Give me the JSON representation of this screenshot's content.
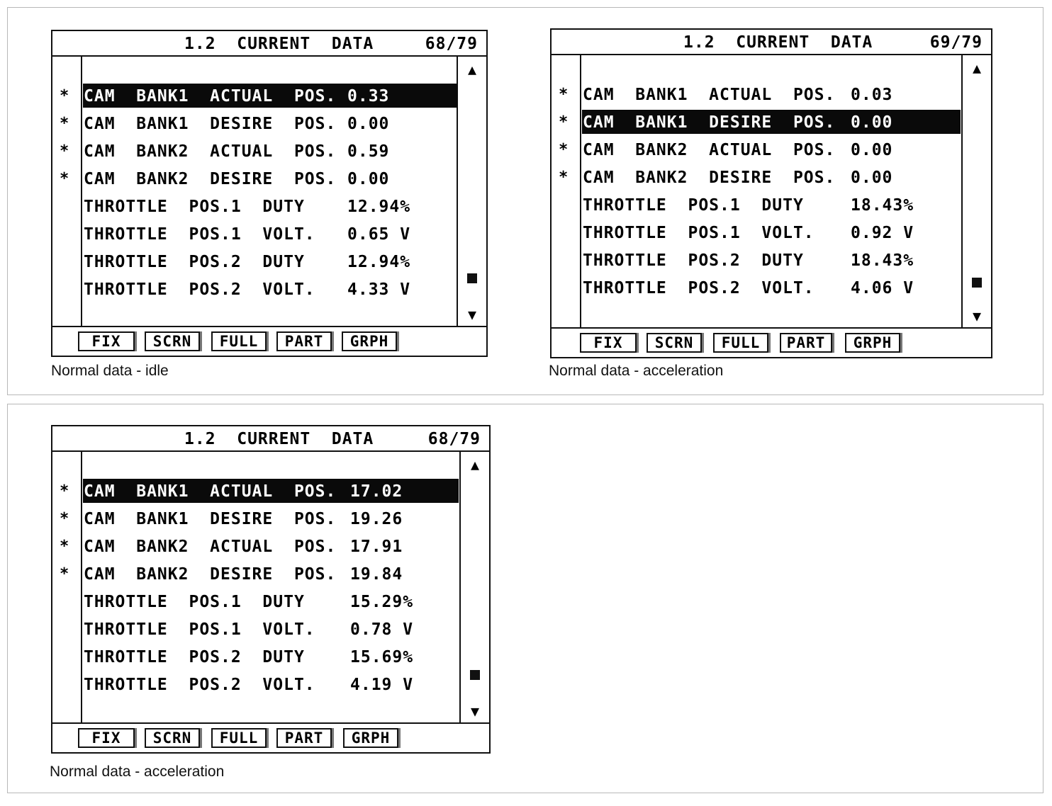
{
  "screens": [
    {
      "title": "1.2  CURRENT  DATA",
      "page": "68/79",
      "caption": "Normal data - idle",
      "rows": [
        {
          "mark": "*",
          "label": "CAM  BANK1  ACTUAL  POS.",
          "value": "0.33",
          "selected": true
        },
        {
          "mark": "*",
          "label": "CAM  BANK1  DESIRE  POS.",
          "value": "0.00",
          "selected": false
        },
        {
          "mark": "*",
          "label": "CAM  BANK2  ACTUAL  POS.",
          "value": "0.59",
          "selected": false
        },
        {
          "mark": "*",
          "label": "CAM  BANK2  DESIRE  POS.",
          "value": "0.00",
          "selected": false
        },
        {
          "mark": "",
          "label": "THROTTLE  POS.1  DUTY",
          "value": "12.94%",
          "selected": false
        },
        {
          "mark": "",
          "label": "THROTTLE  POS.1  VOLT.",
          "value": "0.65 V",
          "selected": false
        },
        {
          "mark": "",
          "label": "THROTTLE  POS.2  DUTY",
          "value": "12.94%",
          "selected": false
        },
        {
          "mark": "",
          "label": "THROTTLE  POS.2  VOLT.",
          "value": "4.33 V",
          "selected": false
        }
      ],
      "buttons": [
        "FIX",
        "SCRN",
        "FULL",
        "PART",
        "GRPH"
      ]
    },
    {
      "title": "1.2  CURRENT  DATA",
      "page": "69/79",
      "caption": "Normal data - acceleration",
      "rows": [
        {
          "mark": "*",
          "label": "CAM  BANK1  ACTUAL  POS.",
          "value": "0.03",
          "selected": false
        },
        {
          "mark": "*",
          "label": "CAM  BANK1  DESIRE  POS.",
          "value": "0.00",
          "selected": true
        },
        {
          "mark": "*",
          "label": "CAM  BANK2  ACTUAL  POS.",
          "value": "0.00",
          "selected": false
        },
        {
          "mark": "*",
          "label": "CAM  BANK2  DESIRE  POS.",
          "value": "0.00",
          "selected": false
        },
        {
          "mark": "",
          "label": "THROTTLE  POS.1  DUTY",
          "value": "18.43%",
          "selected": false
        },
        {
          "mark": "",
          "label": "THROTTLE  POS.1  VOLT.",
          "value": "0.92 V",
          "selected": false
        },
        {
          "mark": "",
          "label": "THROTTLE  POS.2  DUTY",
          "value": "18.43%",
          "selected": false
        },
        {
          "mark": "",
          "label": "THROTTLE  POS.2  VOLT.",
          "value": "4.06 V",
          "selected": false
        }
      ],
      "buttons": [
        "FIX",
        "SCRN",
        "FULL",
        "PART",
        "GRPH"
      ]
    },
    {
      "title": "1.2  CURRENT  DATA",
      "page": "68/79",
      "caption": "Normal data - acceleration",
      "rows": [
        {
          "mark": "*",
          "label": "CAM  BANK1  ACTUAL  POS.",
          "value": "17.02",
          "selected": true
        },
        {
          "mark": "*",
          "label": "CAM  BANK1  DESIRE  POS.",
          "value": "19.26",
          "selected": false
        },
        {
          "mark": "*",
          "label": "CAM  BANK2  ACTUAL  POS.",
          "value": "17.91",
          "selected": false
        },
        {
          "mark": "*",
          "label": "CAM  BANK2  DESIRE  POS.",
          "value": "19.84",
          "selected": false
        },
        {
          "mark": "",
          "label": "THROTTLE  POS.1  DUTY",
          "value": "15.29%",
          "selected": false
        },
        {
          "mark": "",
          "label": "THROTTLE  POS.1  VOLT.",
          "value": "0.78 V",
          "selected": false
        },
        {
          "mark": "",
          "label": "THROTTLE  POS.2  DUTY",
          "value": "15.69%",
          "selected": false
        },
        {
          "mark": "",
          "label": "THROTTLE  POS.2  VOLT.",
          "value": "4.19 V",
          "selected": false
        }
      ],
      "buttons": [
        "FIX",
        "SCRN",
        "FULL",
        "PART",
        "GRPH"
      ]
    }
  ]
}
